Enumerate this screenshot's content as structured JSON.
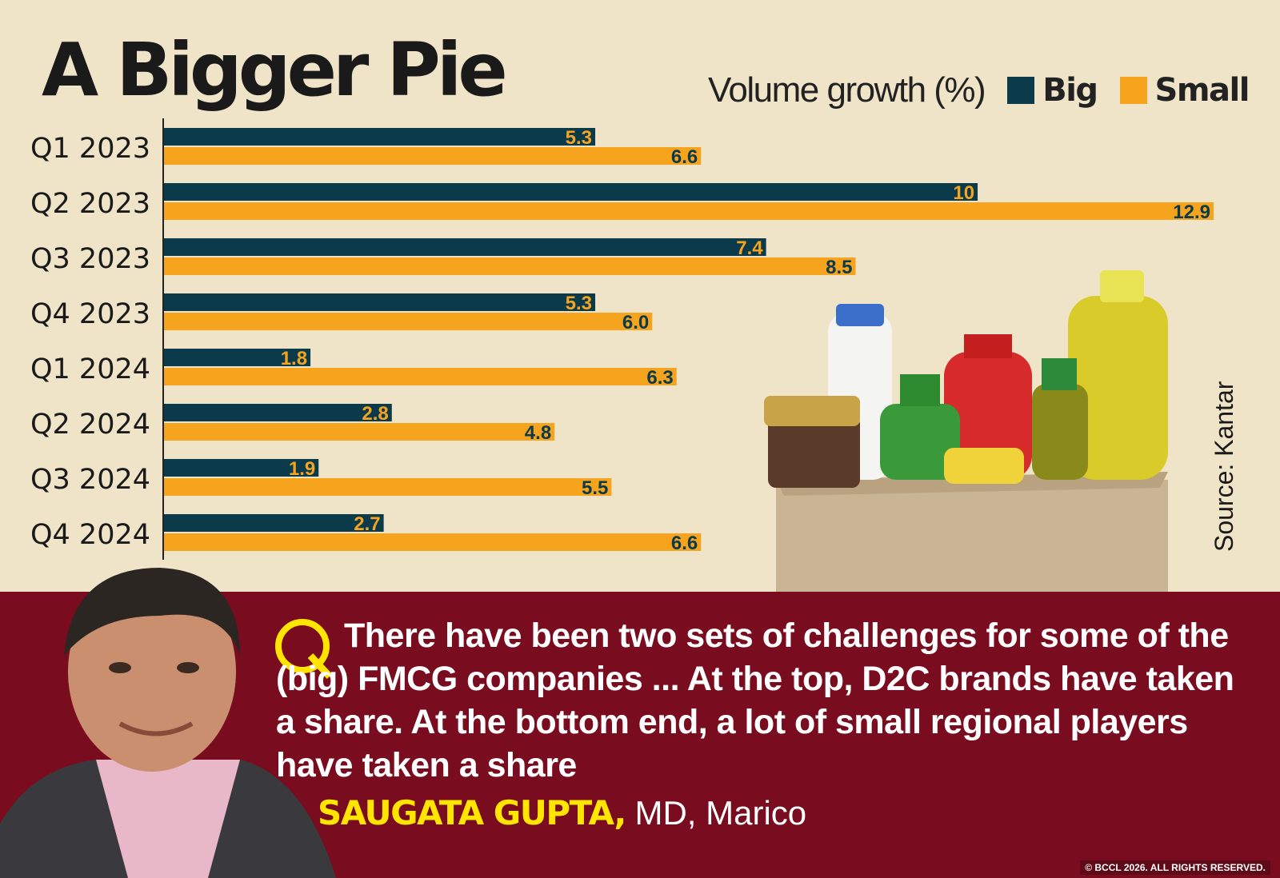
{
  "title": "A Bigger Pie",
  "legend": {
    "label": "Volume growth (%)",
    "big": "Big",
    "small": "Small"
  },
  "colors": {
    "big": "#0b3a4b",
    "small": "#f6a31e",
    "background": "#efe4c8",
    "banner": "#790c1f",
    "name": "#ffe500"
  },
  "source": "Source: Kantar",
  "quote": {
    "icon": "q-quote-icon",
    "text": "There have been two sets of challenges for some of the (big) FMCG companies ... At the top, D2C brands have taken a share. At the bottom end, a lot of small regional players have taken a share",
    "name": "SAUGATA GUPTA,",
    "role": "MD, Marico"
  },
  "copyright": "© BCCL 2026. ALL RIGHTS RESERVED.",
  "chart_data": {
    "type": "bar",
    "orientation": "horizontal",
    "title": "A Bigger Pie",
    "xlabel": "Volume growth (%)",
    "categories": [
      "Q1 2023",
      "Q2 2023",
      "Q3 2023",
      "Q4 2023",
      "Q1 2024",
      "Q2 2024",
      "Q3 2024",
      "Q4 2024"
    ],
    "series": [
      {
        "name": "Big",
        "values": [
          5.3,
          10,
          7.4,
          5.3,
          1.8,
          2.8,
          1.9,
          2.7
        ],
        "labels": [
          "5.3",
          "10",
          "7.4",
          "5.3",
          "1.8",
          "2.8",
          "1.9",
          "2.7"
        ]
      },
      {
        "name": "Small",
        "values": [
          6.6,
          12.9,
          8.5,
          6.0,
          6.3,
          4.8,
          5.5,
          6.6
        ],
        "labels": [
          "6.6",
          "12.9",
          "8.5",
          "6.0",
          "6.3",
          "4.8",
          "5.5",
          "6.6"
        ]
      }
    ],
    "xlim": [
      0,
      12.9
    ],
    "grid": false,
    "legend_position": "top-right"
  }
}
